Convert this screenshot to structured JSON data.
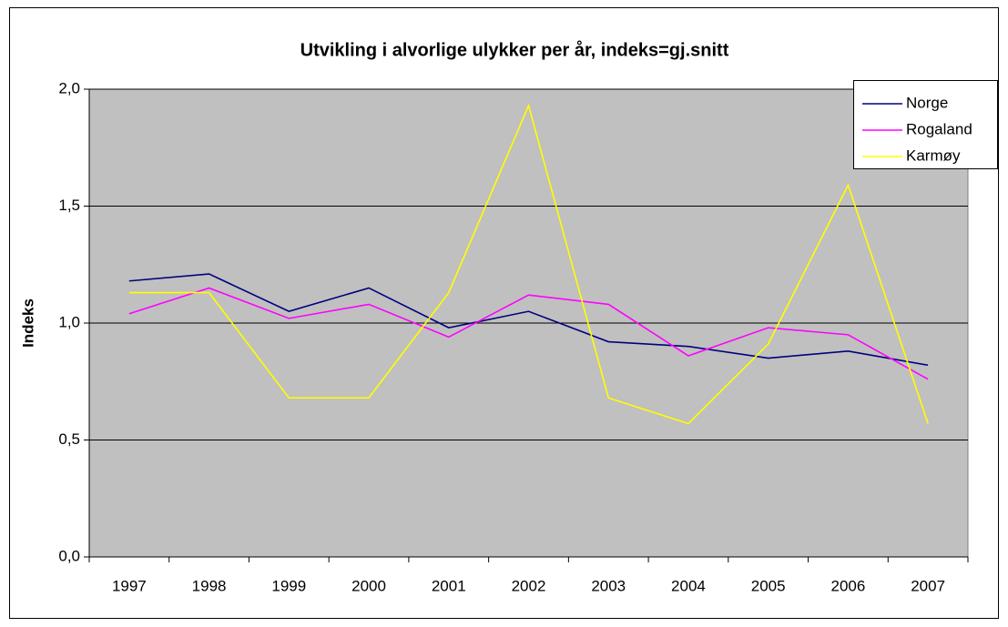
{
  "chart_data": {
    "type": "line",
    "title": "Utvikling i alvorlige ulykker per år, indeks=gj.snitt",
    "ylabel": "Indeks",
    "categories": [
      "1997",
      "1998",
      "1999",
      "2000",
      "2001",
      "2002",
      "2003",
      "2004",
      "2005",
      "2006",
      "2007"
    ],
    "series": [
      {
        "name": "Norge",
        "color": "#000080",
        "values": [
          1.18,
          1.21,
          1.05,
          1.15,
          0.98,
          1.05,
          0.92,
          0.9,
          0.85,
          0.88,
          0.82
        ]
      },
      {
        "name": "Rogaland",
        "color": "#ff00ff",
        "values": [
          1.04,
          1.15,
          1.02,
          1.08,
          0.94,
          1.12,
          1.08,
          0.86,
          0.98,
          0.95,
          0.76
        ]
      },
      {
        "name": "Karmøy",
        "color": "#ffff00",
        "values": [
          1.13,
          1.13,
          0.68,
          0.68,
          1.13,
          1.93,
          0.68,
          0.57,
          0.91,
          1.59,
          0.57
        ]
      }
    ],
    "ylim": [
      0,
      2
    ],
    "yticks": [
      {
        "value": 0,
        "label": "0,0"
      },
      {
        "value": 0.5,
        "label": "0,5"
      },
      {
        "value": 1,
        "label": "1,0"
      },
      {
        "value": 1.5,
        "label": "1,5"
      },
      {
        "value": 2,
        "label": "2,0"
      }
    ],
    "grid": true,
    "legend": "top-right"
  }
}
